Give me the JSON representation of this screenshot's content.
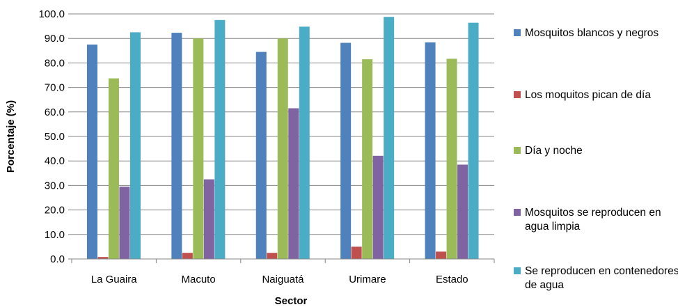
{
  "chart_data": {
    "type": "bar",
    "title": "",
    "xlabel": "Sector",
    "ylabel": "Porcentaje (%)",
    "ylim": [
      0,
      100
    ],
    "yticks": [
      "0.0",
      "10.0",
      "20.0",
      "30.0",
      "40.0",
      "50.0",
      "60.0",
      "70.0",
      "80.0",
      "90.0",
      "100.0"
    ],
    "grid": true,
    "legend_position": "right",
    "categories": [
      "La Guaira",
      "Macuto",
      "Naiguatá",
      "Urimare",
      "Estado"
    ],
    "series": [
      {
        "name": "Mosquitos blancos y negros",
        "color": "#4F81BD",
        "values": [
          87.5,
          92.3,
          84.5,
          88.2,
          88.4
        ]
      },
      {
        "name": "Los moquitos pican de día",
        "color": "#C0504D",
        "values": [
          0.8,
          2.5,
          2.5,
          5.0,
          3.0
        ]
      },
      {
        "name": "Día y noche",
        "color": "#9BBB59",
        "values": [
          73.7,
          90.0,
          90.0,
          81.5,
          81.7
        ]
      },
      {
        "name": "Mosquitos se reproducen en agua limpia",
        "color": "#8064A2",
        "values": [
          29.5,
          32.5,
          61.5,
          42.1,
          38.5
        ]
      },
      {
        "name": "Se reproducen en contenedores de agua",
        "color": "#4BACC6",
        "values": [
          92.5,
          97.5,
          94.8,
          98.8,
          96.4
        ]
      }
    ]
  }
}
